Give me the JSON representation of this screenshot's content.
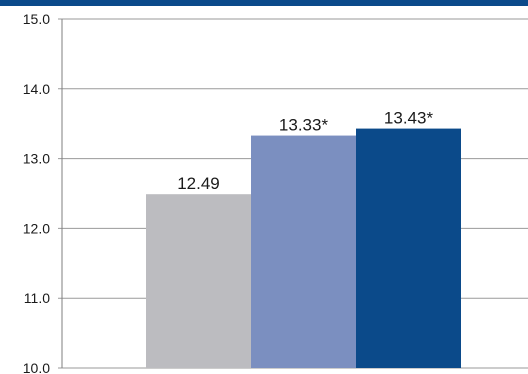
{
  "colors": {
    "top_band": "#0b4a8a",
    "grid": "#9a9a9a",
    "axis": "#7f7f7f",
    "bar_1": "#bcbcc0",
    "bar_2": "#7b8fc0",
    "bar_3": "#0b4a8a"
  },
  "chart_data": {
    "type": "bar",
    "title": "",
    "xlabel": "",
    "ylabel": "",
    "ylim": [
      10.0,
      15.0
    ],
    "yticks": [
      "10.0",
      "11.0",
      "12.0",
      "13.0",
      "14.0",
      "15.0"
    ],
    "grid": true,
    "legend": "none",
    "values": [
      12.49,
      13.33,
      13.43
    ],
    "data_labels": [
      "12.49",
      "13.33*",
      "13.43*"
    ]
  }
}
